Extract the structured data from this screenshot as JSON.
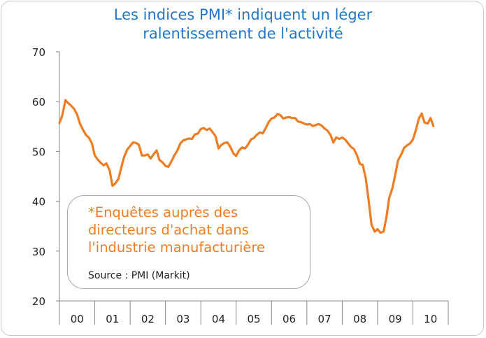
{
  "title_lines": [
    "Les indices PMI* indiquent un léger",
    "ralentissement de l'activité"
  ],
  "note": {
    "text": "*Enquêtes auprès des\ndirecteurs d'achat dans\nl'industrie manufacturière",
    "source": "Source : PMI (Markit)"
  },
  "colors": {
    "title": "#1f77c4",
    "line": "#ee7d22",
    "axis": "#888888",
    "frame": "#c8c8c8"
  },
  "chart_data": {
    "type": "line",
    "title": "Les indices PMI* indiquent un léger ralentissement de l'activité",
    "xlabel": "",
    "ylabel": "",
    "ylim": [
      20,
      70
    ],
    "yticks": [
      20,
      30,
      40,
      50,
      60,
      70
    ],
    "grid": false,
    "categories": [
      "00",
      "01",
      "02",
      "03",
      "04",
      "05",
      "06",
      "07",
      "08",
      "09",
      "10"
    ],
    "x_range_years": [
      2000,
      2011
    ],
    "series": [
      {
        "name": "",
        "color": "#ee7d22",
        "points": [
          [
            2000.0,
            55.7
          ],
          [
            2000.08,
            57.2
          ],
          [
            2000.17,
            60.3
          ],
          [
            2000.25,
            59.7
          ],
          [
            2000.33,
            59.2
          ],
          [
            2000.42,
            58.5
          ],
          [
            2000.5,
            57.4
          ],
          [
            2000.58,
            55.6
          ],
          [
            2000.67,
            54.3
          ],
          [
            2000.75,
            53.3
          ],
          [
            2000.83,
            52.8
          ],
          [
            2000.92,
            51.6
          ],
          [
            2001.0,
            49.2
          ],
          [
            2001.08,
            48.4
          ],
          [
            2001.17,
            47.7
          ],
          [
            2001.25,
            47.2
          ],
          [
            2001.33,
            47.6
          ],
          [
            2001.42,
            46.2
          ],
          [
            2001.5,
            43.1
          ],
          [
            2001.58,
            43.6
          ],
          [
            2001.67,
            44.5
          ],
          [
            2001.75,
            46.8
          ],
          [
            2001.83,
            48.9
          ],
          [
            2001.92,
            50.4
          ],
          [
            2002.0,
            51.1
          ],
          [
            2002.08,
            51.8
          ],
          [
            2002.17,
            51.7
          ],
          [
            2002.25,
            51.3
          ],
          [
            2002.33,
            49.2
          ],
          [
            2002.42,
            49.2
          ],
          [
            2002.5,
            49.4
          ],
          [
            2002.58,
            48.6
          ],
          [
            2002.67,
            49.5
          ],
          [
            2002.75,
            50.2
          ],
          [
            2002.83,
            48.3
          ],
          [
            2002.92,
            47.8
          ],
          [
            2003.0,
            47.1
          ],
          [
            2003.08,
            46.9
          ],
          [
            2003.17,
            48.0
          ],
          [
            2003.25,
            49.2
          ],
          [
            2003.33,
            50.1
          ],
          [
            2003.42,
            51.6
          ],
          [
            2003.5,
            52.2
          ],
          [
            2003.58,
            52.4
          ],
          [
            2003.67,
            52.6
          ],
          [
            2003.75,
            52.5
          ],
          [
            2003.83,
            53.4
          ],
          [
            2003.92,
            53.6
          ],
          [
            2004.0,
            54.5
          ],
          [
            2004.08,
            54.7
          ],
          [
            2004.17,
            54.3
          ],
          [
            2004.25,
            54.6
          ],
          [
            2004.33,
            53.9
          ],
          [
            2004.42,
            53.0
          ],
          [
            2004.5,
            50.6
          ],
          [
            2004.58,
            51.3
          ],
          [
            2004.67,
            51.7
          ],
          [
            2004.75,
            51.8
          ],
          [
            2004.83,
            51.0
          ],
          [
            2004.92,
            49.6
          ],
          [
            2005.0,
            49.1
          ],
          [
            2005.08,
            50.2
          ],
          [
            2005.17,
            50.8
          ],
          [
            2005.25,
            50.6
          ],
          [
            2005.33,
            51.3
          ],
          [
            2005.42,
            52.4
          ],
          [
            2005.5,
            52.7
          ],
          [
            2005.58,
            53.3
          ],
          [
            2005.67,
            53.8
          ],
          [
            2005.75,
            53.6
          ],
          [
            2005.83,
            54.6
          ],
          [
            2005.92,
            55.9
          ],
          [
            2006.0,
            56.6
          ],
          [
            2006.08,
            56.8
          ],
          [
            2006.17,
            57.5
          ],
          [
            2006.25,
            57.3
          ],
          [
            2006.33,
            56.6
          ],
          [
            2006.42,
            56.8
          ],
          [
            2006.5,
            56.9
          ],
          [
            2006.58,
            56.7
          ],
          [
            2006.67,
            56.7
          ],
          [
            2006.75,
            56.0
          ],
          [
            2006.83,
            55.9
          ],
          [
            2006.92,
            55.6
          ],
          [
            2007.0,
            55.4
          ],
          [
            2007.08,
            55.5
          ],
          [
            2007.17,
            55.1
          ],
          [
            2007.25,
            55.3
          ],
          [
            2007.33,
            55.5
          ],
          [
            2007.42,
            55.2
          ],
          [
            2007.5,
            54.6
          ],
          [
            2007.58,
            54.2
          ],
          [
            2007.67,
            53.3
          ],
          [
            2007.75,
            51.8
          ],
          [
            2007.83,
            52.8
          ],
          [
            2007.92,
            52.5
          ],
          [
            2008.0,
            52.8
          ],
          [
            2008.08,
            52.4
          ],
          [
            2008.17,
            51.6
          ],
          [
            2008.25,
            50.9
          ],
          [
            2008.33,
            50.5
          ],
          [
            2008.42,
            49.2
          ],
          [
            2008.5,
            47.5
          ],
          [
            2008.58,
            47.3
          ],
          [
            2008.67,
            44.5
          ],
          [
            2008.75,
            40.0
          ],
          [
            2008.83,
            35.3
          ],
          [
            2008.92,
            33.9
          ],
          [
            2009.0,
            34.4
          ],
          [
            2009.08,
            33.7
          ],
          [
            2009.17,
            33.9
          ],
          [
            2009.25,
            36.7
          ],
          [
            2009.33,
            40.7
          ],
          [
            2009.42,
            42.6
          ],
          [
            2009.5,
            45.3
          ],
          [
            2009.58,
            48.2
          ],
          [
            2009.67,
            49.4
          ],
          [
            2009.75,
            50.7
          ],
          [
            2009.83,
            51.2
          ],
          [
            2009.92,
            51.6
          ],
          [
            2010.0,
            52.4
          ],
          [
            2010.08,
            54.2
          ],
          [
            2010.17,
            56.6
          ],
          [
            2010.25,
            57.6
          ],
          [
            2010.33,
            55.8
          ],
          [
            2010.42,
            55.6
          ],
          [
            2010.5,
            56.7
          ],
          [
            2010.58,
            55.1
          ]
        ]
      }
    ]
  }
}
